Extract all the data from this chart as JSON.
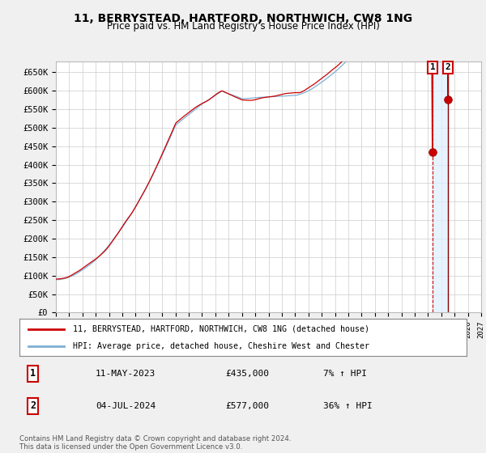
{
  "title_line1": "11, BERRYSTEAD, HARTFORD, NORTHWICH, CW8 1NG",
  "title_line2": "Price paid vs. HM Land Registry's House Price Index (HPI)",
  "ylim": [
    0,
    680000
  ],
  "yticks": [
    0,
    50000,
    100000,
    150000,
    200000,
    250000,
    300000,
    350000,
    400000,
    450000,
    500000,
    550000,
    600000,
    650000
  ],
  "ytick_labels": [
    "£0",
    "£50K",
    "£100K",
    "£150K",
    "£200K",
    "£250K",
    "£300K",
    "£350K",
    "£400K",
    "£450K",
    "£500K",
    "£550K",
    "£600K",
    "£650K"
  ],
  "hpi_color": "#7fafd4",
  "price_color": "#cc0000",
  "t1_year": 2023.36,
  "t2_year": 2024.5,
  "price1": 435000,
  "price2": 577000,
  "annotation1_label": "1",
  "annotation1_date": "11-MAY-2023",
  "annotation1_price": "£435,000",
  "annotation1_hpi": "7% ↑ HPI",
  "annotation2_label": "2",
  "annotation2_date": "04-JUL-2024",
  "annotation2_price": "£577,000",
  "annotation2_hpi": "36% ↑ HPI",
  "legend_line1": "11, BERRYSTEAD, HARTFORD, NORTHWICH, CW8 1NG (detached house)",
  "legend_line2": "HPI: Average price, detached house, Cheshire West and Chester",
  "footer": "Contains HM Land Registry data © Crown copyright and database right 2024.\nThis data is licensed under the Open Government Licence v3.0.",
  "background_color": "#f0f0f0",
  "plot_bg_color": "#ffffff",
  "shade_color": "#ddeeff",
  "xlim_start": 1995,
  "xlim_end": 2027
}
